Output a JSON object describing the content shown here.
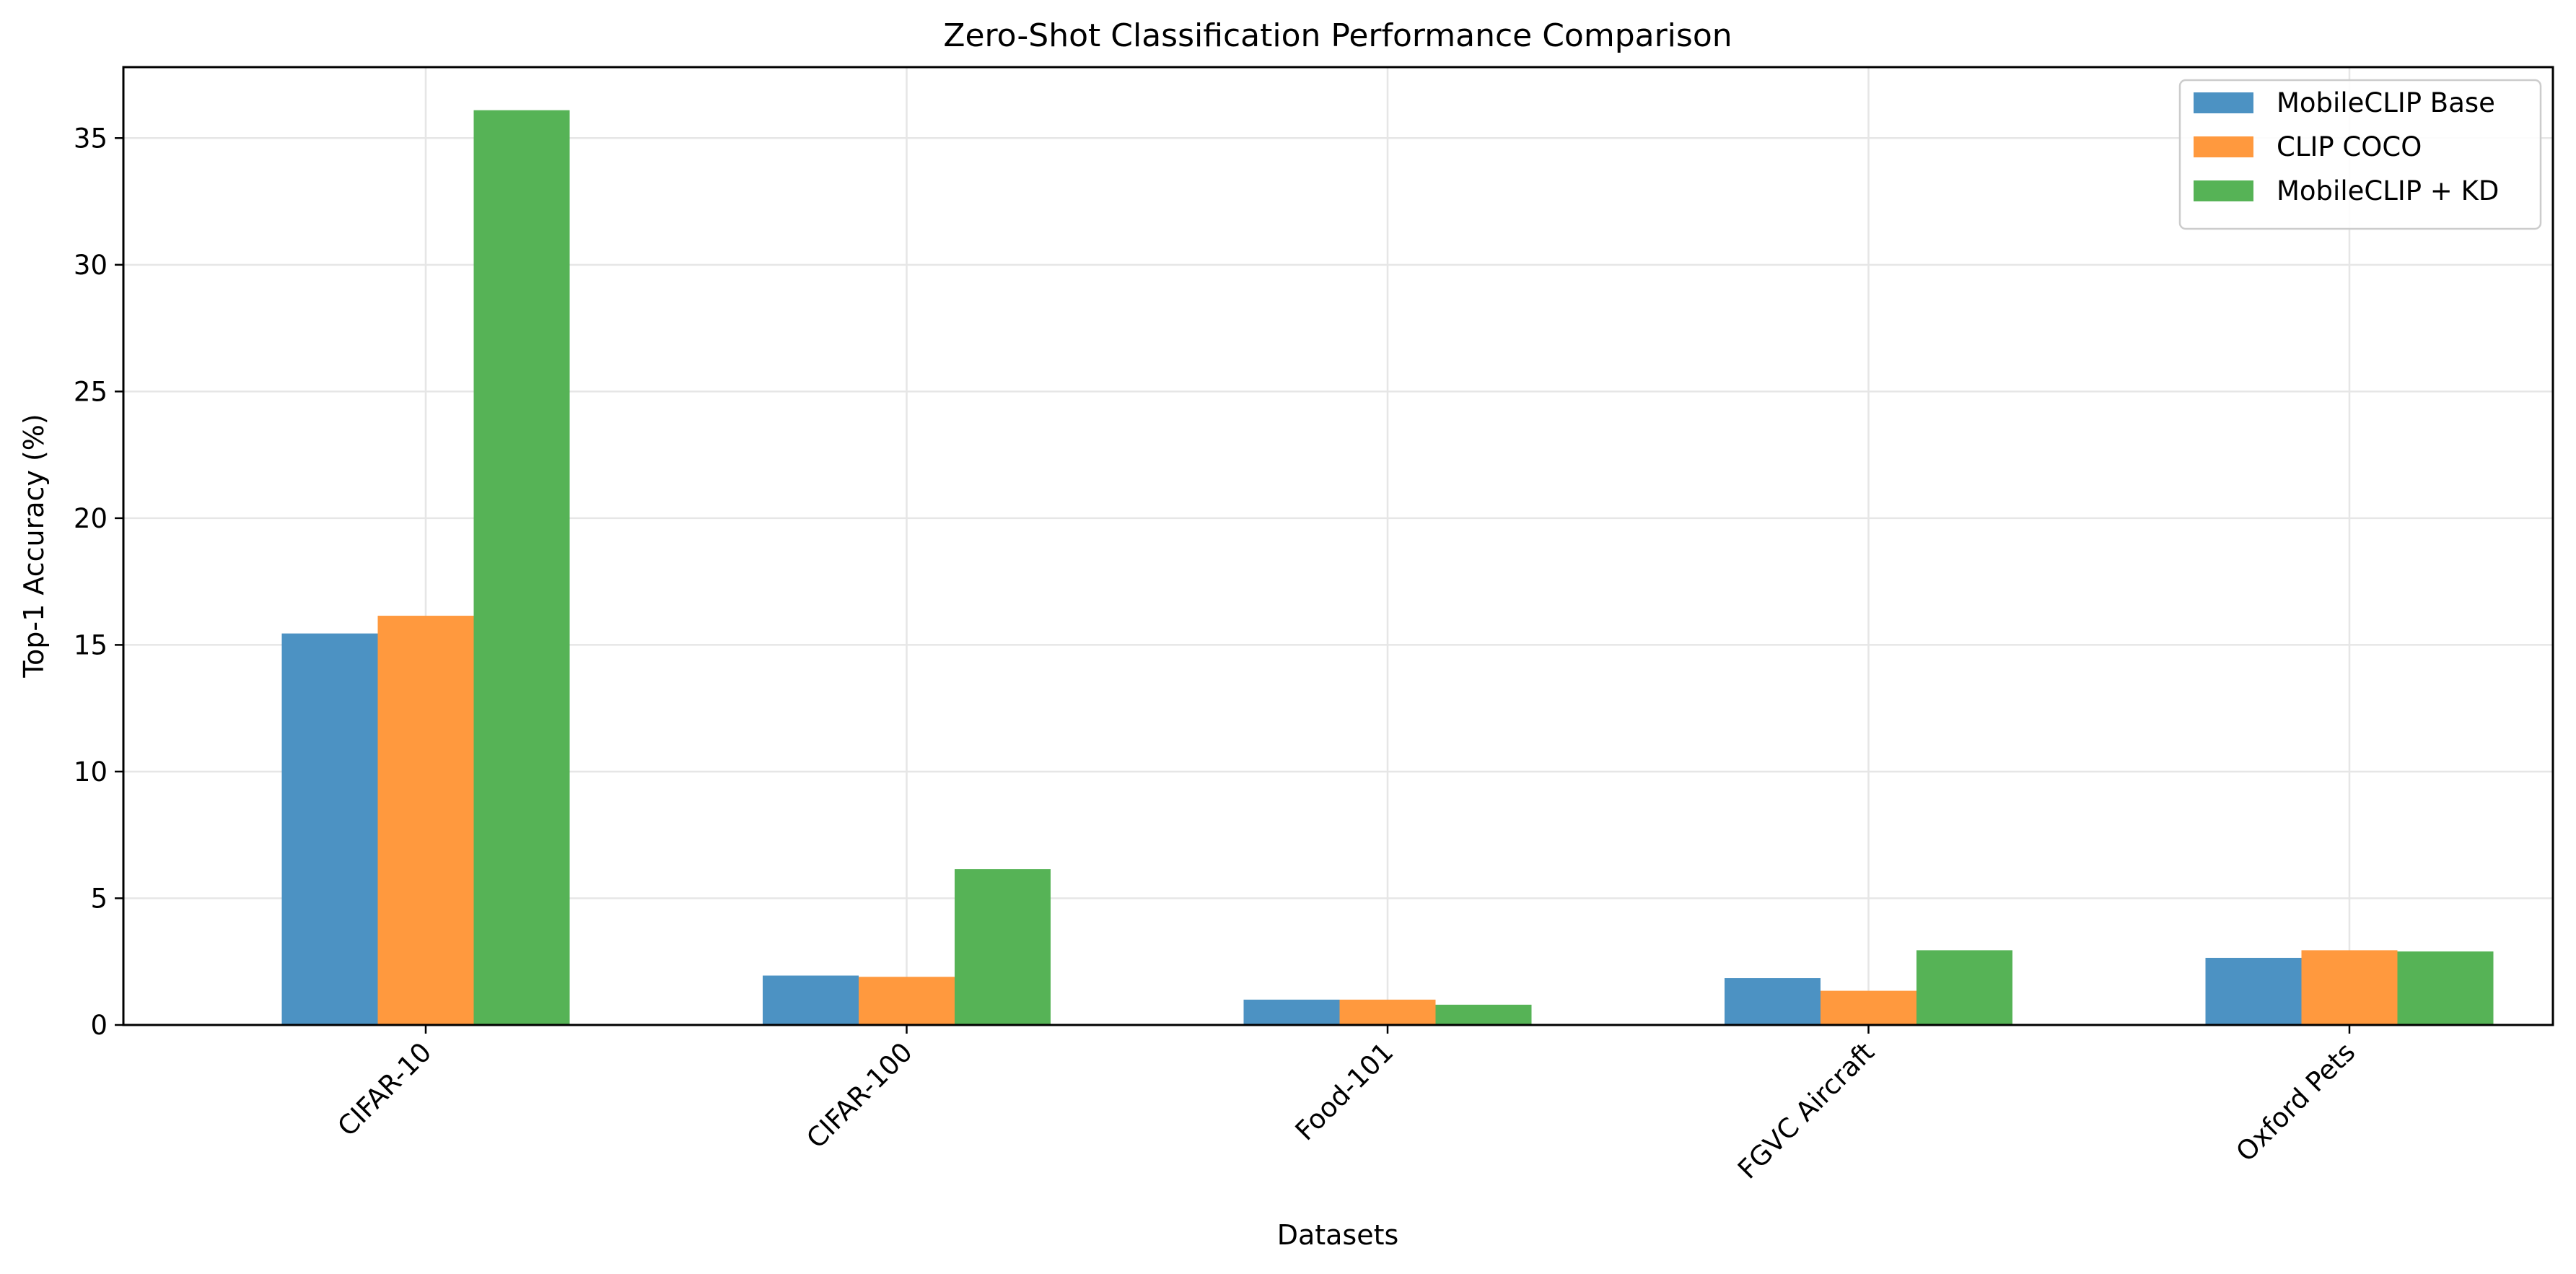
{
  "chart_data": {
    "type": "bar",
    "title": "Zero-Shot Classification Performance Comparison",
    "xlabel": "Datasets",
    "ylabel": "Top-1 Accuracy (%)",
    "categories": [
      "CIFAR-10",
      "CIFAR-100",
      "Food-101",
      "FGVC Aircraft",
      "Oxford Pets"
    ],
    "series": [
      {
        "name": "MobileCLIP Base",
        "color": "#4c92c3",
        "values": [
          15.45,
          1.95,
          1.0,
          1.85,
          2.65
        ]
      },
      {
        "name": "CLIP COCO",
        "color": "#ff993e",
        "values": [
          16.15,
          1.9,
          1.0,
          1.35,
          2.95
        ]
      },
      {
        "name": "MobileCLIP + KD",
        "color": "#56b356",
        "values": [
          36.1,
          6.15,
          0.8,
          2.95,
          2.9
        ]
      }
    ],
    "ylim": [
      0,
      37.8
    ],
    "yticks": [
      0,
      5,
      10,
      15,
      20,
      25,
      30,
      35
    ],
    "grid": true,
    "legend_position": "top-right"
  }
}
